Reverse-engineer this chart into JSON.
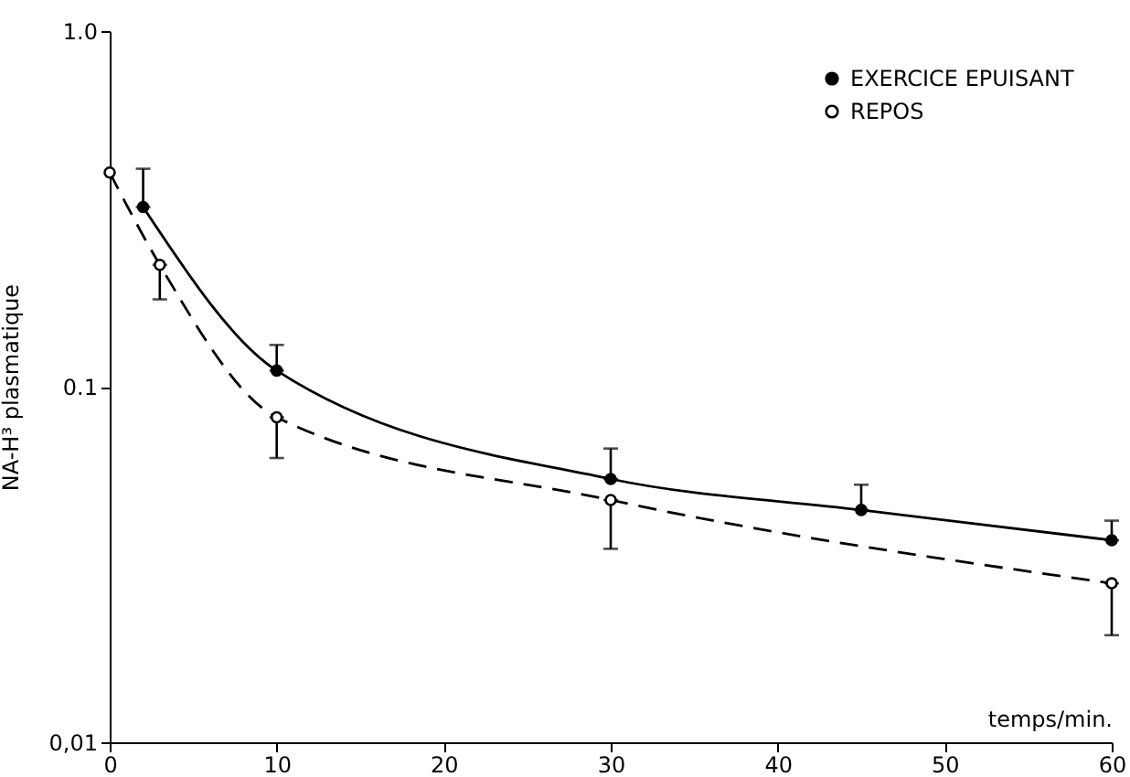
{
  "chart_data": {
    "type": "line",
    "xlabel": "temps/min.",
    "ylabel": "NA-H³ plasmatique",
    "xlim": [
      0,
      60
    ],
    "xticks": [
      0,
      10,
      20,
      30,
      40,
      50,
      60
    ],
    "ylim": [
      0.01,
      1
    ],
    "yticks": [
      {
        "value": 0.01,
        "label": "0,01"
      },
      0.1,
      {
        "value": 1,
        "label": "1.0"
      }
    ],
    "log": true,
    "grid": false,
    "legend": "top right",
    "marker": "circle",
    "series": [
      {
        "name": "EXERCICE EPUISANT",
        "color": "#000000",
        "line_style": "solid",
        "x": [
          2,
          10,
          30,
          45,
          60
        ],
        "values": [
          0.32,
          0.111,
          0.055,
          0.045,
          0.037
        ],
        "errors": [
          [
            0.32,
            0.41
          ],
          [
            0.111,
            0.131
          ],
          [
            0.055,
            0.067
          ],
          [
            0.045,
            0.053
          ],
          [
            0.037,
            0.042
          ]
        ]
      },
      {
        "name": "REPOS",
        "color": "#000000",
        "line_style": "dashed",
        "x": [
          0,
          3,
          10,
          30,
          60
        ],
        "values": [
          0.4,
          0.22,
          0.082,
          0.048,
          0.028
        ],
        "errors": [
          null,
          [
            0.176,
            0.22
          ],
          [
            0.063,
            0.082
          ],
          [
            0.035,
            0.048
          ],
          [
            0.02,
            0.028
          ]
        ]
      }
    ]
  }
}
